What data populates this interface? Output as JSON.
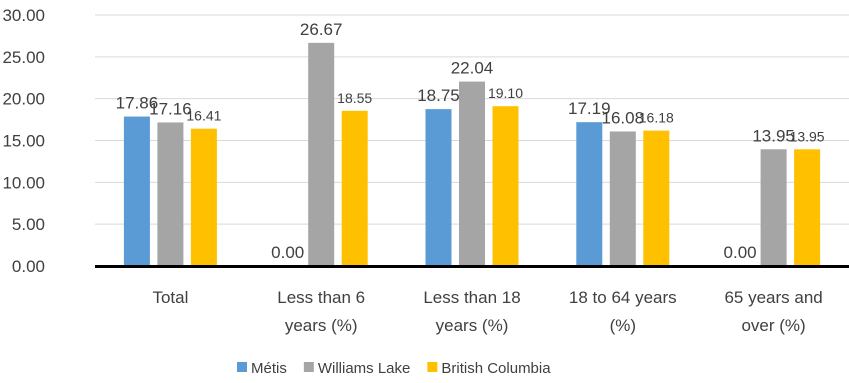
{
  "chart_data": {
    "type": "bar",
    "title": "",
    "xlabel": "",
    "ylabel": "",
    "ylim": [
      0,
      30
    ],
    "yticks": [
      "0.00",
      "5.00",
      "10.00",
      "15.00",
      "20.00",
      "25.00",
      "30.00"
    ],
    "grid": true,
    "legend_position": "bottom",
    "categories": [
      [
        "Total"
      ],
      [
        "Less than 6",
        "years (%)"
      ],
      [
        "Less than 18",
        "years (%)"
      ],
      [
        "18 to 64 years",
        "(%)"
      ],
      [
        "65 years and",
        "over (%)"
      ]
    ],
    "series": [
      {
        "name": "Métis",
        "color": "#5b9bd5",
        "values": [
          17.86,
          0.0,
          18.75,
          17.19,
          0.0
        ],
        "labels": [
          "17.86",
          "0.00",
          "18.75",
          "17.19",
          "0.00"
        ]
      },
      {
        "name": "Williams Lake",
        "color": "#a5a5a5",
        "values": [
          17.16,
          26.67,
          22.04,
          16.08,
          13.95
        ],
        "labels": [
          "17.16",
          "26.67",
          "22.04",
          "16.08",
          "13.95"
        ]
      },
      {
        "name": "British Columbia",
        "color": "#ffc000",
        "values": [
          16.41,
          18.55,
          19.1,
          16.18,
          13.95
        ],
        "labels": [
          "16.41",
          "18.55",
          "19.10",
          "16.18",
          "13.95"
        ]
      }
    ]
  }
}
